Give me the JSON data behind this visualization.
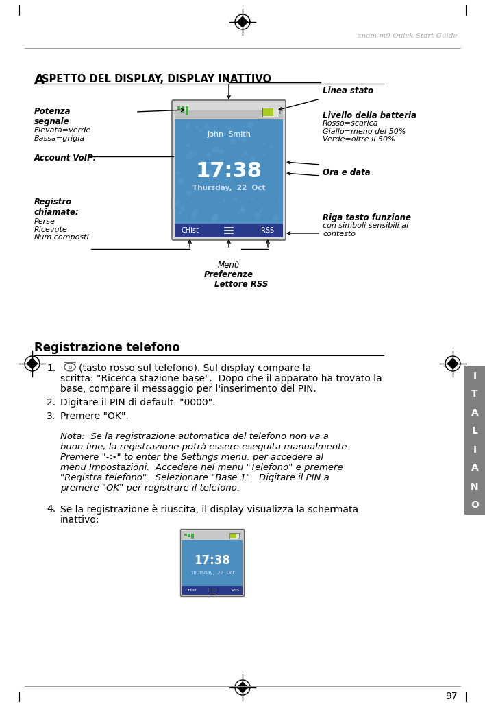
{
  "page_width": 7.08,
  "page_height": 10.32,
  "bg_color": "#ffffff",
  "header_text": "snom m9 Quick Start Guide",
  "header_color": "#aaaaaa",
  "page_number": "97",
  "tab_letters": [
    "I",
    "T",
    "A",
    "L",
    "I",
    "A",
    "N",
    "O"
  ],
  "tab_bg": "#808080",
  "tab_text_color": "#ffffff",
  "label_linea_stato": "Linea stato",
  "label_livello": "Livello della batteria",
  "label_livello_sub": "Rosso=scarica\nGiallo=meno del 50%\nVerde=oltre il 50%",
  "label_potenza_bold": "Potenza\nsegnale",
  "label_potenza_colon": ":",
  "label_potenza_sub": "Elevata=verde\nBassa=grigia",
  "label_account": "Account VoIP:",
  "label_registro_bold": "Registro\nchiamate",
  "label_registro_colon": ":",
  "label_registro_sub": "Perse\nRicevute\nNum.composti",
  "label_menu_normal": "Menù",
  "label_menu_bold": "Preferenze",
  "label_riga_bold": "Riga tasto funzione",
  "label_riga_normal": "con simboli sensibili al\ncontesto",
  "label_ora": "Ora e data",
  "label_lettore": "Lettore RSS",
  "reg_title": "Registrazione telefono",
  "step2": "Digitare il PIN di default  \"0000\".",
  "step3": "Premere \"OK\".",
  "nota_line1": "Nota:  Se la registrazione automatica del telefono non va a",
  "nota_line2": "buon fine, la registrazione potrà essere eseguita manualmente.",
  "nota_line3": "Premere \"->\" to enter the Settings menu. per accedere al",
  "nota_line4": "menu Impostazioni.  Accedere nel menu \"Telefono\" e premere",
  "nota_line5": "\"Registra telefono\".  Selezionare \"Base 1\".  Digitare il PIN a",
  "nota_line6": "premere \"OK\" per registrare il telefono.",
  "step4_line1": "Se la registrazione è riuscita, il display visualizza la schermata",
  "step4_line2": "inattivo:",
  "display_time": "17:38",
  "display_date": "Thursday,  22  Oct",
  "display_name": "John  Smith",
  "display_menu1": "CHist",
  "display_menu2": "RSS",
  "phone_bg": "#4a8fc0",
  "phone_header_bg": "#c8c8c8",
  "phone_footer_bg": "#2a3a8a",
  "phone_time_color": "#ffffff",
  "phone_date_color": "#cce0ff",
  "phone_name_color": "#ffffff",
  "signal_color": "#44aa44",
  "battery_color": "#aacc22"
}
